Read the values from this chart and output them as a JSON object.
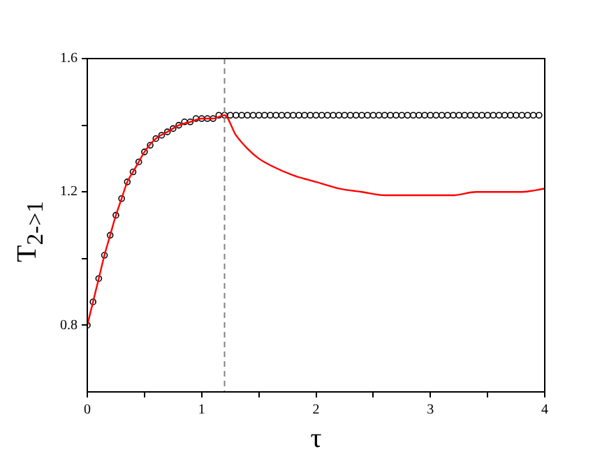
{
  "chart_data": {
    "type": "line",
    "xlabel": "τ",
    "ylabel": "T$_{2->1}$",
    "xlim": [
      0,
      4
    ],
    "xticks": [
      0,
      {
        "value": 0.5,
        "label": null
      },
      1,
      {
        "value": 1.5,
        "label": null
      },
      2,
      {
        "value": 2.5,
        "label": null
      },
      3,
      {
        "value": 3.5,
        "label": null
      },
      4
    ],
    "ylim": [
      0.6,
      1.6
    ],
    "yticks": [
      0.8,
      {
        "value": 1.0,
        "label": null
      },
      1.2,
      {
        "value": 1.4,
        "label": null
      },
      1.6
    ],
    "grid": false,
    "legend": false,
    "ref_lines": [
      {
        "axis": "x",
        "value": 1.2,
        "color": "#808080",
        "line_style": "dashed"
      }
    ],
    "series": [
      {
        "type": "scatter",
        "marker": "circle",
        "color": "#000000",
        "x": [
          0,
          0.05,
          0.1,
          0.15,
          0.2,
          0.25,
          0.3,
          0.35,
          0.4,
          0.45,
          0.5,
          0.55,
          0.6,
          0.65,
          0.7,
          0.75,
          0.8,
          0.85,
          0.9,
          0.95,
          1.0,
          1.05,
          1.1,
          1.15,
          1.2,
          1.25,
          1.3,
          1.35,
          1.4,
          1.45,
          1.5,
          1.55,
          1.6,
          1.65,
          1.7,
          1.75,
          1.8,
          1.85,
          1.9,
          1.95,
          2.0,
          2.05,
          2.1,
          2.15,
          2.2,
          2.25,
          2.3,
          2.35,
          2.4,
          2.45,
          2.5,
          2.55,
          2.6,
          2.65,
          2.7,
          2.75,
          2.8,
          2.85,
          2.9,
          2.95,
          3.0,
          3.05,
          3.1,
          3.15,
          3.2,
          3.25,
          3.3,
          3.35,
          3.4,
          3.45,
          3.5,
          3.55,
          3.6,
          3.65,
          3.7,
          3.75,
          3.8,
          3.85,
          3.9,
          3.95
        ],
        "values": [
          0.8,
          0.87,
          0.94,
          1.01,
          1.07,
          1.13,
          1.18,
          1.23,
          1.26,
          1.29,
          1.32,
          1.34,
          1.36,
          1.37,
          1.38,
          1.39,
          1.4,
          1.41,
          1.41,
          1.42,
          1.42,
          1.42,
          1.42,
          1.43,
          1.43,
          1.43,
          1.43,
          1.43,
          1.43,
          1.43,
          1.43,
          1.43,
          1.43,
          1.43,
          1.43,
          1.43,
          1.43,
          1.43,
          1.43,
          1.43,
          1.43,
          1.43,
          1.43,
          1.43,
          1.43,
          1.43,
          1.43,
          1.43,
          1.43,
          1.43,
          1.43,
          1.43,
          1.43,
          1.43,
          1.43,
          1.43,
          1.43,
          1.43,
          1.43,
          1.43,
          1.43,
          1.43,
          1.43,
          1.43,
          1.43,
          1.43,
          1.43,
          1.43,
          1.43,
          1.43,
          1.43,
          1.43,
          1.43,
          1.43,
          1.43,
          1.43,
          1.43,
          1.43,
          1.43,
          1.43
        ]
      },
      {
        "marker": "none",
        "line_style": "solid",
        "color": "#ff0000",
        "x": [
          0,
          0.05,
          0.1,
          0.15,
          0.2,
          0.25,
          0.3,
          0.35,
          0.4,
          0.45,
          0.5,
          0.6,
          0.7,
          0.8,
          0.9,
          1.0,
          1.1,
          1.2,
          1.3,
          1.4,
          1.5,
          1.6,
          1.8,
          2.0,
          2.2,
          2.4,
          2.6,
          2.8,
          3.0,
          3.2,
          3.4,
          3.6,
          3.8,
          4.0
        ],
        "values": [
          0.8,
          0.87,
          0.94,
          1.01,
          1.07,
          1.13,
          1.18,
          1.23,
          1.26,
          1.29,
          1.32,
          1.36,
          1.38,
          1.4,
          1.41,
          1.42,
          1.42,
          1.43,
          1.37,
          1.33,
          1.3,
          1.28,
          1.25,
          1.23,
          1.21,
          1.2,
          1.19,
          1.19,
          1.19,
          1.19,
          1.2,
          1.2,
          1.2,
          1.21
        ]
      }
    ]
  }
}
